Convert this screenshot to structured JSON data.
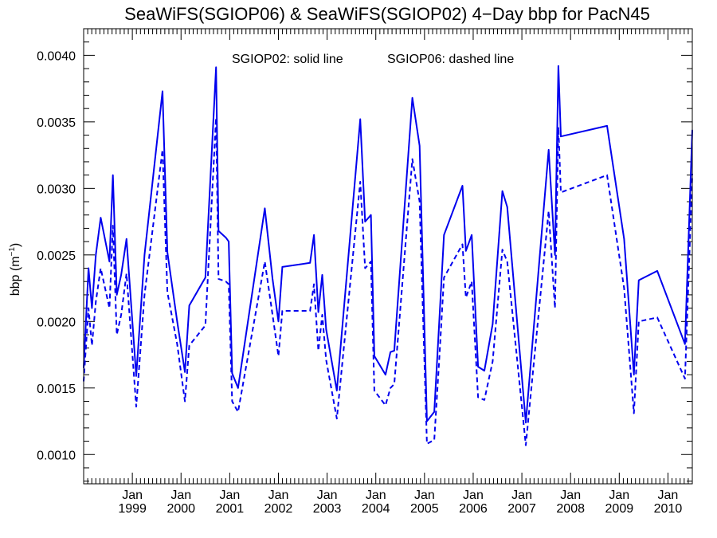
{
  "chart_data": {
    "type": "line",
    "title": "SeaWiFS(SGIOP06) & SeaWiFS(SGIOP02) 4−Day bbp for PacN45",
    "ylabel_main": "bbp (m",
    "ylabel_sup": "−1",
    "ylabel_close": ")",
    "annotation_solid": "SGIOP02: solid line",
    "annotation_dashed": "SGIOP06: dashed line",
    "xlim": [
      1998.0,
      2010.5
    ],
    "ylim": [
      0.00078,
      0.0042
    ],
    "yticks": [
      {
        "value": 0.001,
        "label": "0.0010"
      },
      {
        "value": 0.0015,
        "label": "0.0015"
      },
      {
        "value": 0.002,
        "label": "0.0020"
      },
      {
        "value": 0.0025,
        "label": "0.0025"
      },
      {
        "value": 0.003,
        "label": "0.0030"
      },
      {
        "value": 0.0035,
        "label": "0.0035"
      },
      {
        "value": 0.004,
        "label": "0.0040"
      }
    ],
    "xticks": [
      {
        "value": 1999,
        "month": "Jan",
        "year": "1999"
      },
      {
        "value": 2000,
        "month": "Jan",
        "year": "2000"
      },
      {
        "value": 2001,
        "month": "Jan",
        "year": "2001"
      },
      {
        "value": 2002,
        "month": "Jan",
        "year": "2002"
      },
      {
        "value": 2003,
        "month": "Jan",
        "year": "2003"
      },
      {
        "value": 2004,
        "month": "Jan",
        "year": "2004"
      },
      {
        "value": 2005,
        "month": "Jan",
        "year": "2005"
      },
      {
        "value": 2006,
        "month": "Jan",
        "year": "2006"
      },
      {
        "value": 2007,
        "month": "Jan",
        "year": "2007"
      },
      {
        "value": 2008,
        "month": "Jan",
        "year": "2008"
      },
      {
        "value": 2009,
        "month": "Jan",
        "year": "2009"
      },
      {
        "value": 2010,
        "month": "Jan",
        "year": "2010"
      }
    ],
    "line_color": "#0000ee",
    "series": [
      {
        "style": "solid",
        "points": [
          [
            1998.0,
            0.00165
          ],
          [
            1998.1,
            0.0024
          ],
          [
            1998.17,
            0.0021
          ],
          [
            1998.25,
            0.0025
          ],
          [
            1998.35,
            0.00278
          ],
          [
            1998.53,
            0.00245
          ],
          [
            1998.6,
            0.0031
          ],
          [
            1998.68,
            0.0022
          ],
          [
            1998.77,
            0.00235
          ],
          [
            1998.88,
            0.00262
          ],
          [
            1999.08,
            0.00159
          ],
          [
            1999.25,
            0.0025
          ],
          [
            1999.62,
            0.00373
          ],
          [
            1999.72,
            0.00252
          ],
          [
            1999.92,
            0.002
          ],
          [
            2000.08,
            0.00162
          ],
          [
            2000.17,
            0.00212
          ],
          [
            2000.5,
            0.00233
          ],
          [
            2000.72,
            0.00391
          ],
          [
            2000.77,
            0.00268
          ],
          [
            2000.92,
            0.00263
          ],
          [
            2000.98,
            0.0026
          ],
          [
            2001.05,
            0.00161
          ],
          [
            2001.17,
            0.0015
          ],
          [
            2001.72,
            0.00285
          ],
          [
            2001.88,
            0.00232
          ],
          [
            2002.0,
            0.002
          ],
          [
            2002.08,
            0.00241
          ],
          [
            2002.65,
            0.00244
          ],
          [
            2002.73,
            0.00265
          ],
          [
            2002.82,
            0.00207
          ],
          [
            2002.9,
            0.00235
          ],
          [
            2002.98,
            0.00194
          ],
          [
            2003.2,
            0.00148
          ],
          [
            2003.68,
            0.00352
          ],
          [
            2003.78,
            0.00275
          ],
          [
            2003.9,
            0.0028
          ],
          [
            2003.97,
            0.00174
          ],
          [
            2004.2,
            0.0016
          ],
          [
            2004.3,
            0.00177
          ],
          [
            2004.38,
            0.00178
          ],
          [
            2004.75,
            0.00368
          ],
          [
            2004.9,
            0.00332
          ],
          [
            2005.05,
            0.00125
          ],
          [
            2005.2,
            0.00132
          ],
          [
            2005.3,
            0.00198
          ],
          [
            2005.4,
            0.00265
          ],
          [
            2005.78,
            0.00302
          ],
          [
            2005.85,
            0.00253
          ],
          [
            2005.97,
            0.00265
          ],
          [
            2006.1,
            0.00166
          ],
          [
            2006.23,
            0.00163
          ],
          [
            2006.4,
            0.00198
          ],
          [
            2006.6,
            0.00298
          ],
          [
            2006.7,
            0.00286
          ],
          [
            2007.08,
            0.00124
          ],
          [
            2007.55,
            0.00329
          ],
          [
            2007.68,
            0.0025
          ],
          [
            2007.75,
            0.00392
          ],
          [
            2007.8,
            0.00339
          ],
          [
            2008.75,
            0.00347
          ],
          [
            2009.1,
            0.00262
          ],
          [
            2009.3,
            0.0016
          ],
          [
            2009.4,
            0.00231
          ],
          [
            2009.78,
            0.00238
          ],
          [
            2010.35,
            0.00183
          ],
          [
            2010.5,
            0.00344
          ]
        ]
      },
      {
        "style": "dashed",
        "points": [
          [
            1998.0,
            0.00155
          ],
          [
            1998.1,
            0.0021
          ],
          [
            1998.17,
            0.00182
          ],
          [
            1998.25,
            0.00215
          ],
          [
            1998.35,
            0.0024
          ],
          [
            1998.53,
            0.0021
          ],
          [
            1998.6,
            0.00272
          ],
          [
            1998.68,
            0.0019
          ],
          [
            1998.77,
            0.00205
          ],
          [
            1998.88,
            0.00236
          ],
          [
            1999.08,
            0.00136
          ],
          [
            1999.25,
            0.0022
          ],
          [
            1999.62,
            0.00329
          ],
          [
            1999.72,
            0.00222
          ],
          [
            1999.92,
            0.00183
          ],
          [
            2000.08,
            0.0014
          ],
          [
            2000.17,
            0.00182
          ],
          [
            2000.5,
            0.00197
          ],
          [
            2000.72,
            0.00353
          ],
          [
            2000.77,
            0.00232
          ],
          [
            2000.92,
            0.0023
          ],
          [
            2000.98,
            0.00228
          ],
          [
            2001.05,
            0.0014
          ],
          [
            2001.17,
            0.00132
          ],
          [
            2001.72,
            0.00245
          ],
          [
            2001.88,
            0.00205
          ],
          [
            2002.0,
            0.00174
          ],
          [
            2002.08,
            0.00208
          ],
          [
            2002.65,
            0.00208
          ],
          [
            2002.73,
            0.00228
          ],
          [
            2002.82,
            0.00178
          ],
          [
            2002.9,
            0.00205
          ],
          [
            2002.98,
            0.00171
          ],
          [
            2003.2,
            0.00127
          ],
          [
            2003.68,
            0.00305
          ],
          [
            2003.78,
            0.0024
          ],
          [
            2003.9,
            0.00245
          ],
          [
            2003.97,
            0.00148
          ],
          [
            2004.2,
            0.00137
          ],
          [
            2004.3,
            0.0015
          ],
          [
            2004.38,
            0.00153
          ],
          [
            2004.75,
            0.00322
          ],
          [
            2004.9,
            0.0029
          ],
          [
            2005.05,
            0.00108
          ],
          [
            2005.2,
            0.00111
          ],
          [
            2005.3,
            0.0017
          ],
          [
            2005.4,
            0.00233
          ],
          [
            2005.78,
            0.00258
          ],
          [
            2005.85,
            0.00218
          ],
          [
            2005.97,
            0.0023
          ],
          [
            2006.1,
            0.00143
          ],
          [
            2006.23,
            0.00141
          ],
          [
            2006.4,
            0.0017
          ],
          [
            2006.6,
            0.00254
          ],
          [
            2006.7,
            0.00245
          ],
          [
            2007.08,
            0.00107
          ],
          [
            2007.55,
            0.00283
          ],
          [
            2007.68,
            0.0021
          ],
          [
            2007.75,
            0.00346
          ],
          [
            2007.8,
            0.00297
          ],
          [
            2008.75,
            0.0031
          ],
          [
            2009.1,
            0.00225
          ],
          [
            2009.3,
            0.00131
          ],
          [
            2009.4,
            0.002
          ],
          [
            2009.78,
            0.00203
          ],
          [
            2010.35,
            0.00157
          ],
          [
            2010.5,
            0.00311
          ]
        ]
      }
    ]
  }
}
